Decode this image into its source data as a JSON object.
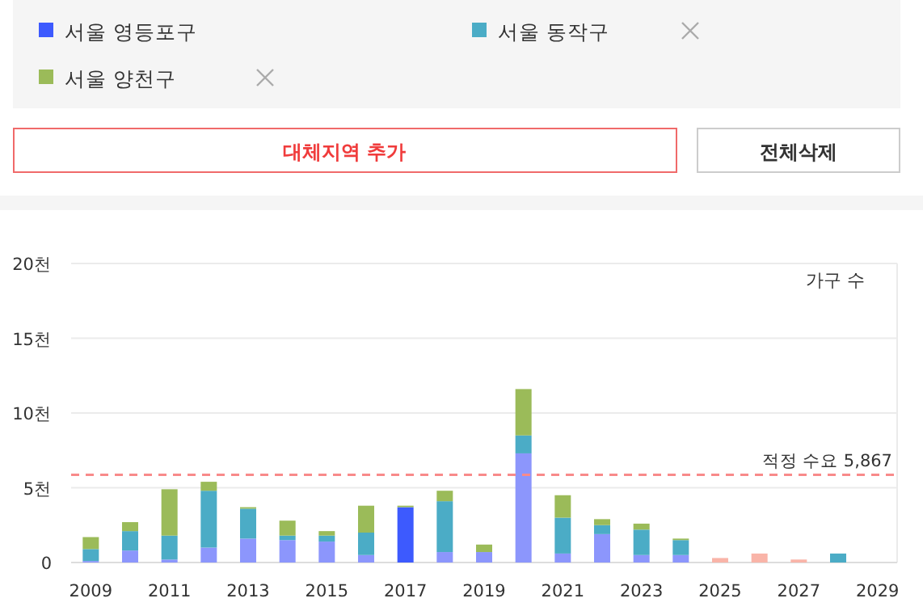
{
  "chart_data": {
    "type": "bar",
    "stacked": true,
    "legend": "top",
    "grid": "y",
    "categories": [
      "2009",
      null,
      "2011",
      null,
      "2013",
      null,
      "2015",
      null,
      "2017",
      null,
      "2019",
      null,
      "2021",
      null,
      "2023",
      null,
      "2025",
      null,
      "2027",
      null,
      "2029"
    ],
    "series": [
      {
        "name": "서울 영등포구",
        "color": "#3d5afe",
        "colors": [
          "#8c96fc",
          "#8c96fc",
          "#8c96fc",
          "#8c96fc",
          "#8c96fc",
          "#8c96fc",
          "#8c96fc",
          "#8c96fc",
          "#3d5afe",
          "#8c96fc",
          "#8c96fc",
          "#8c96fc",
          "#8c96fc",
          "#8c96fc",
          "#8c96fc",
          "#8c96fc",
          "#f9b4a8",
          "#f9b4a8",
          "#f9b4a8",
          "#8c96fc",
          null
        ],
        "values": [
          0.1,
          0.8,
          0.2,
          1.0,
          1.6,
          1.5,
          1.4,
          0.5,
          3.7,
          0.7,
          0.7,
          7.3,
          0.6,
          1.9,
          0.5,
          0.5,
          0.3,
          0.6,
          0.2,
          0,
          null
        ]
      },
      {
        "name": "서울 동작구",
        "color": "#4bacc6",
        "values": [
          0.8,
          1.3,
          1.6,
          3.8,
          2.0,
          0.3,
          0.4,
          1.5,
          0,
          3.4,
          0,
          1.2,
          2.4,
          0.6,
          1.7,
          1.0,
          0,
          0,
          0,
          0.6,
          null
        ]
      },
      {
        "name": "서울 양천구",
        "color": "#9bbb59",
        "values": [
          0.8,
          0.6,
          3.1,
          0.6,
          0.1,
          1.0,
          0.3,
          1.8,
          0.1,
          0.7,
          0.5,
          3.1,
          1.5,
          0.4,
          0.4,
          0.1,
          0,
          0,
          0,
          0,
          null
        ]
      }
    ],
    "ylim": [
      0,
      20
    ],
    "yticks": [
      0,
      {
        "value": 5,
        "label": "5천"
      },
      {
        "value": 10,
        "label": "10천"
      },
      {
        "value": 15,
        "label": "15천"
      },
      {
        "value": 20,
        "label": "20천"
      }
    ],
    "ref_lines": [
      {
        "axis": "y",
        "value": 5.867,
        "label": "적정 수요 5,867",
        "color": "#f88a8a",
        "line_style": "dashed"
      }
    ],
    "annotations": [
      "가구 수",
      "대체지역 추가",
      "전체삭제"
    ]
  }
}
